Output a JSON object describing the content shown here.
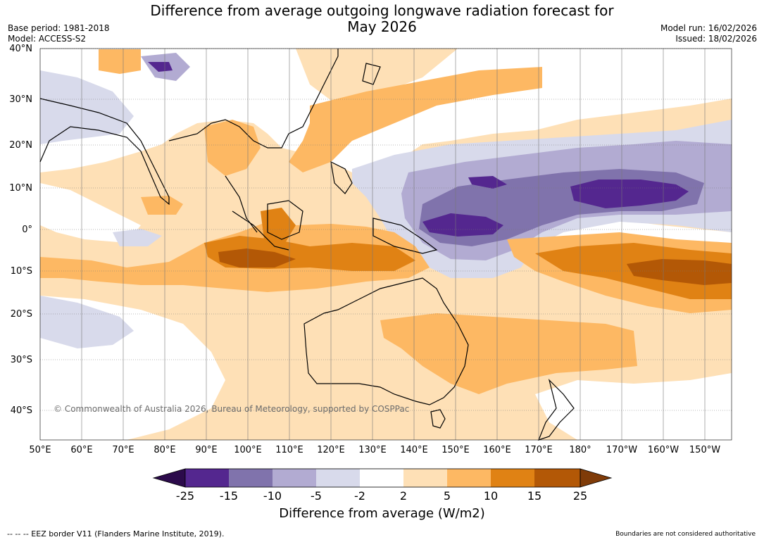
{
  "title": {
    "line1": "Difference from average outgoing longwave radiation forecast for",
    "line2": "May 2026"
  },
  "meta_left": {
    "base_period": "Base period: 1981-2018",
    "model": "Model: ACCESS-S2"
  },
  "meta_right": {
    "model_run": "Model run: 16/02/2026",
    "issued": "Issued: 18/02/2026"
  },
  "latitude_labels": [
    "40°N",
    "30°N",
    "20°N",
    "10°N",
    "0°",
    "10°S",
    "20°S",
    "30°S",
    "40°S"
  ],
  "longitude_labels": [
    "50°E",
    "60°E",
    "70°E",
    "80°E",
    "90°E",
    "100°E",
    "110°E",
    "120°E",
    "130°E",
    "140°E",
    "150°E",
    "160°E",
    "170°E",
    "180°",
    "170°W",
    "160°W",
    "150°W"
  ],
  "copyright": "© Commonwealth of Australia 2026, Bureau of Meteorology, supported by COSPPac",
  "colorbar": {
    "ticks": [
      "-25",
      "-15",
      "-10",
      "-5",
      "-2",
      "2",
      "5",
      "10",
      "15",
      "25"
    ],
    "colors": [
      "#2c0b4b",
      "#54278f",
      "#8073ac",
      "#b2abd2",
      "#d8daeb",
      "#ffffff",
      "#fee0b6",
      "#fdb863",
      "#e08214",
      "#b35806",
      "#7f3b08"
    ],
    "title": "Difference from average (W/m2)"
  },
  "footer": {
    "eez_note": "--  --  -- EEZ border V11 (Flanders Marine Institute, 2019).",
    "boundary_note": "Boundaries are not considered authoritative"
  }
}
